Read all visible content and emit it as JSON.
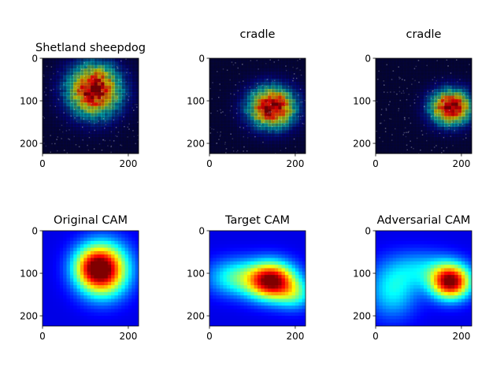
{
  "chart_data": [
    {
      "type": "heatmap",
      "title": "Shetland sheepdog",
      "x_ticks": [
        "0",
        "200"
      ],
      "y_ticks": [
        "0",
        "100",
        "200"
      ],
      "xlim": [
        0,
        224
      ],
      "ylim": [
        224,
        0
      ],
      "content": "dog photo with CAM overlay",
      "hotspots": [
        {
          "x": 120,
          "y": 75,
          "sx": 45,
          "sy": 45,
          "v": 1.0
        }
      ]
    },
    {
      "type": "heatmap",
      "title": "cradle",
      "x_ticks": [
        "0",
        "200"
      ],
      "y_ticks": [
        "0",
        "100",
        "200"
      ],
      "xlim": [
        0,
        224
      ],
      "ylim": [
        224,
        0
      ],
      "content": "cradle photo with CAM overlay",
      "hotspots": [
        {
          "x": 145,
          "y": 115,
          "sx": 40,
          "sy": 35,
          "v": 1.0
        }
      ]
    },
    {
      "type": "heatmap",
      "title": "cradle",
      "x_ticks": [
        "0",
        "200"
      ],
      "y_ticks": [
        "0",
        "100",
        "200"
      ],
      "xlim": [
        0,
        224
      ],
      "ylim": [
        224,
        0
      ],
      "content": "dog photo with CAM overlay",
      "hotspots": [
        {
          "x": 175,
          "y": 115,
          "sx": 35,
          "sy": 30,
          "v": 1.0
        }
      ]
    },
    {
      "type": "heatmap",
      "title": "Original CAM",
      "x_ticks": [
        "0",
        "200"
      ],
      "y_ticks": [
        "0",
        "100",
        "200"
      ],
      "xlim": [
        0,
        224
      ],
      "ylim": [
        224,
        0
      ],
      "hotspots": [
        {
          "x": 140,
          "y": 92,
          "sx": 40,
          "sy": 42,
          "v": 1.0
        },
        {
          "x": 110,
          "y": 85,
          "sx": 30,
          "sy": 30,
          "v": 0.25
        }
      ]
    },
    {
      "type": "heatmap",
      "title": "Target CAM",
      "x_ticks": [
        "0",
        "200"
      ],
      "y_ticks": [
        "0",
        "100",
        "200"
      ],
      "xlim": [
        0,
        224
      ],
      "ylim": [
        224,
        0
      ],
      "hotspots": [
        {
          "x": 145,
          "y": 118,
          "sx": 38,
          "sy": 30,
          "v": 1.0
        },
        {
          "x": 60,
          "y": 110,
          "sx": 45,
          "sy": 30,
          "v": 0.35
        },
        {
          "x": 200,
          "y": 150,
          "sx": 30,
          "sy": 25,
          "v": 0.3
        }
      ]
    },
    {
      "type": "heatmap",
      "title": "Adversarial CAM",
      "x_ticks": [
        "0",
        "200"
      ],
      "y_ticks": [
        "0",
        "100",
        "200"
      ],
      "xlim": [
        0,
        224
      ],
      "ylim": [
        224,
        0
      ],
      "hotspots": [
        {
          "x": 175,
          "y": 120,
          "sx": 32,
          "sy": 28,
          "v": 1.0
        },
        {
          "x": 40,
          "y": 140,
          "sx": 40,
          "sy": 45,
          "v": 0.3
        },
        {
          "x": 110,
          "y": 90,
          "sx": 50,
          "sy": 30,
          "v": 0.22
        }
      ]
    }
  ]
}
